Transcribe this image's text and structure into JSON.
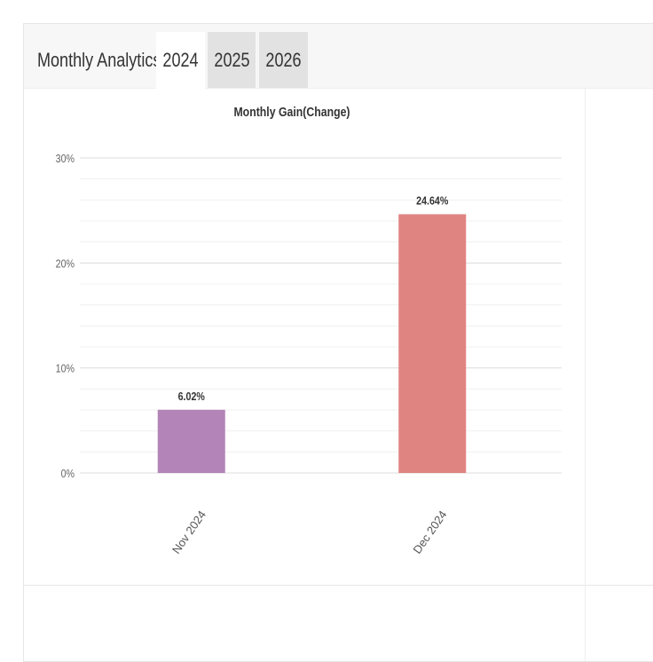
{
  "header": {
    "title": "Monthly Analytics",
    "tabs": [
      {
        "label": "2024",
        "active": true
      },
      {
        "label": "2025",
        "active": false
      },
      {
        "label": "2026",
        "active": false
      }
    ]
  },
  "chart_data": {
    "type": "bar",
    "title": "Monthly Gain(Change)",
    "categories": [
      "Nov 2024",
      "Dec 2024"
    ],
    "values": [
      6.02,
      24.64
    ],
    "value_labels": [
      "6.02%",
      "24.64%"
    ],
    "colors": [
      "#b384b8",
      "#e08482"
    ],
    "ylim": [
      0,
      30
    ],
    "yticks": [
      0,
      10,
      20,
      30
    ],
    "ytick_labels": [
      "0%",
      "10%",
      "20%",
      "30%"
    ],
    "grid": true,
    "minor_grid_step": 2
  }
}
